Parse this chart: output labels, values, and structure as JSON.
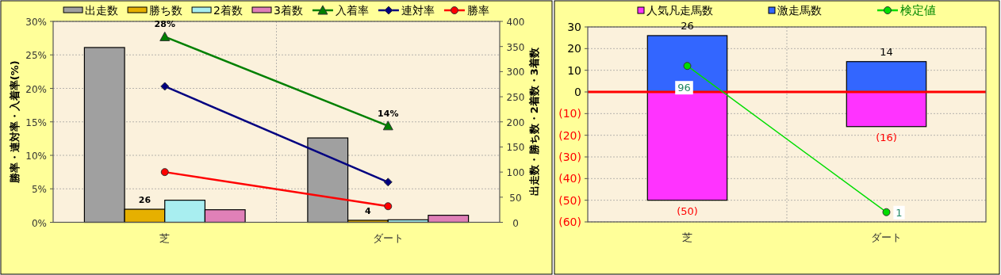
{
  "chart_data": [
    {
      "type": "bar",
      "categories": [
        "芝",
        "ダート"
      ],
      "ylabel": "勝率・連対率・入着率(%)",
      "y2label": "出走数・勝ち数・2着数・3着数",
      "ylim": [
        0,
        30
      ],
      "yticks": [
        {
          "value": 0,
          "label": "0%"
        },
        {
          "value": 5,
          "label": "5%"
        },
        {
          "value": 10,
          "label": "10%"
        },
        {
          "value": 15,
          "label": "15%"
        },
        {
          "value": 20,
          "label": "20%"
        },
        {
          "value": 25,
          "label": "25%"
        },
        {
          "value": 30,
          "label": "30%"
        }
      ],
      "y2lim": [
        0,
        400
      ],
      "y2ticks": [
        0,
        50,
        100,
        150,
        200,
        250,
        300,
        350,
        400
      ],
      "grid": true,
      "legend": "top",
      "series": [
        {
          "name": "出走数",
          "axis": "y2",
          "color": "#a0a0a0",
          "values": [
            348,
            168
          ]
        },
        {
          "name": "勝ち数",
          "axis": "y2",
          "color": "#e6b000",
          "values": [
            26,
            4
          ],
          "value_labels": [
            "26",
            "4"
          ]
        },
        {
          "name": "2着数",
          "axis": "y2",
          "color": "#a8eef0",
          "values": [
            44,
            5
          ]
        },
        {
          "name": "3着数",
          "axis": "y2",
          "color": "#e080b8",
          "values": [
            25,
            14
          ]
        },
        {
          "name": "入着率",
          "type": "line",
          "color": "#008000",
          "marker": "triangle",
          "values": [
            27.7,
            14.4
          ],
          "value_labels": [
            "28%",
            "14%"
          ]
        },
        {
          "name": "連対率",
          "type": "line",
          "color": "#000080",
          "marker": "diamond",
          "values": [
            20.3,
            6.0
          ]
        },
        {
          "name": "勝率",
          "type": "line",
          "color": "#ff0000",
          "marker": "circle",
          "values": [
            7.5,
            2.4
          ]
        }
      ]
    },
    {
      "type": "bar",
      "stacked": true,
      "categories": [
        "芝",
        "ダート"
      ],
      "ylim": [
        -60,
        30
      ],
      "yticks": [
        {
          "value": -60,
          "label": "(60)"
        },
        {
          "value": -50,
          "label": "(50)"
        },
        {
          "value": -40,
          "label": "(40)"
        },
        {
          "value": -30,
          "label": "(30)"
        },
        {
          "value": -20,
          "label": "(20)"
        },
        {
          "value": -10,
          "label": "(10)"
        },
        0,
        10,
        20,
        30
      ],
      "grid": true,
      "legend": "top",
      "ref_lines": [
        {
          "axis": "y",
          "value": 0,
          "color": "#ff0000"
        }
      ],
      "series": [
        {
          "name": "人気凡走馬数",
          "color": "#ff33ff",
          "values": [
            -50,
            -16
          ],
          "value_labels": [
            "(50)",
            "(16)"
          ]
        },
        {
          "name": "激走馬数",
          "color": "#3366ff",
          "values": [
            26,
            14
          ],
          "value_labels": [
            "26",
            "14"
          ]
        },
        {
          "name": "検定値",
          "type": "line",
          "axis": "y2",
          "color": "#00dd00",
          "marker": "circle",
          "values": [
            96,
            1
          ],
          "value_labels": [
            "96",
            "1"
          ]
        }
      ]
    }
  ]
}
